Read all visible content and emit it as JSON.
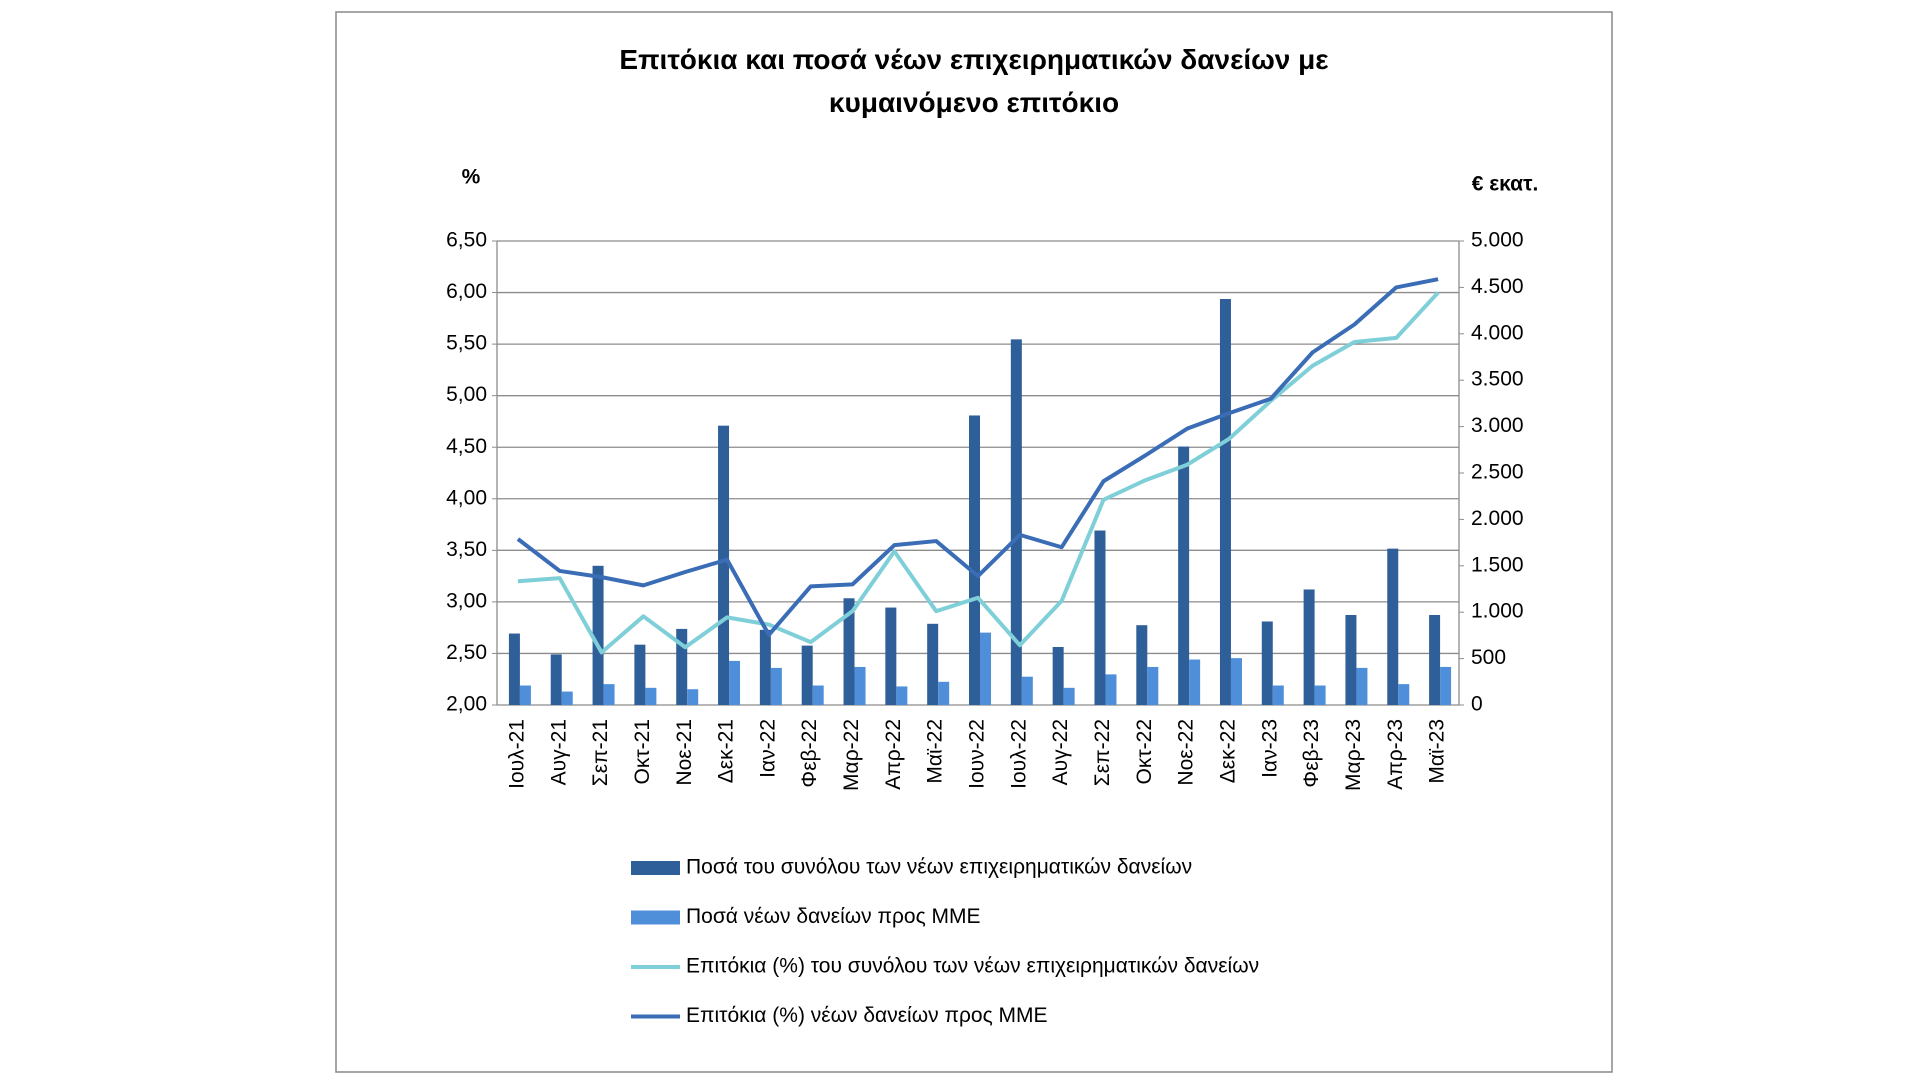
{
  "chart_data": {
    "type": "bar-line",
    "title": "Επιτόκια και ποσά νέων επιχειρηματικών  δανείων με\nκυμαινόμενο επιτόκιο",
    "y_label": "%",
    "y2_label": "€ εκατ.",
    "categories": [
      "Ιουλ-21",
      "Αυγ-21",
      "Σεπ-21",
      "Οκτ-21",
      "Νοε-21",
      "Δεκ-21",
      "Ιαν-22",
      "Φεβ-22",
      "Μαρ-22",
      "Απρ-22",
      "Μαϊ-22",
      "Ιουν-22",
      "Ιουλ-22",
      "Αυγ-22",
      "Σεπ-22",
      "Οκτ-22",
      "Νοε-22",
      "Δεκ-22",
      "Ιαν-23",
      "Φεβ-23",
      "Μαρ-23",
      "Απρ-23",
      "Μαϊ-23"
    ],
    "series": [
      {
        "name": "Ποσά του συνόλου των νέων επιχειρηματικών δανείων",
        "type": "bar",
        "axis": "y2",
        "color": "#2f5f98",
        "values": [
          770,
          545,
          1500,
          650,
          820,
          3010,
          810,
          640,
          1150,
          1050,
          875,
          3120,
          3940,
          625,
          1880,
          860,
          2785,
          4375,
          900,
          1245,
          970,
          1685,
          970
        ]
      },
      {
        "name": "Ποσά νέων δανείων προς ΜΜΕ",
        "type": "bar",
        "axis": "y2",
        "color": "#4f8fd9",
        "values": [
          210,
          145,
          225,
          185,
          170,
          475,
          400,
          210,
          410,
          200,
          250,
          780,
          305,
          185,
          330,
          410,
          490,
          505,
          210,
          210,
          400,
          225,
          410
        ]
      },
      {
        "name": "Επιτόκια (%) του συνόλου των νέων επιχειρηματικών δανείων",
        "type": "line",
        "color": "#7fcfd8",
        "values": [
          3.2,
          3.23,
          2.51,
          2.86,
          2.56,
          2.85,
          2.78,
          2.61,
          2.91,
          3.49,
          2.91,
          3.04,
          2.58,
          3.01,
          3.99,
          4.18,
          4.33,
          4.58,
          4.95,
          5.29,
          5.52,
          5.56,
          6.0
        ]
      },
      {
        "name": "Επιτόκια (%) νέων δανείων προς ΜΜΕ",
        "type": "line",
        "color": "#3a6db5",
        "values": [
          3.61,
          3.3,
          3.24,
          3.16,
          3.29,
          3.41,
          2.68,
          3.15,
          3.17,
          3.55,
          3.59,
          3.25,
          3.65,
          3.53,
          4.17,
          4.42,
          4.68,
          4.83,
          4.97,
          5.42,
          5.69,
          6.05,
          6.13
        ]
      }
    ],
    "ylim": [
      2,
      6.5
    ],
    "yticks": [
      {
        "value": 2,
        "label": "2,00"
      },
      {
        "value": 2.5,
        "label": "2,50"
      },
      {
        "value": 3,
        "label": "3,00"
      },
      {
        "value": 3.5,
        "label": "3,50"
      },
      {
        "value": 4,
        "label": "4,00"
      },
      {
        "value": 4.5,
        "label": "4,50"
      },
      {
        "value": 5,
        "label": "5,00"
      },
      {
        "value": 5.5,
        "label": "5,50"
      },
      {
        "value": 6,
        "label": "6,00"
      },
      {
        "value": 6.5,
        "label": "6,50"
      }
    ],
    "y2lim": [
      0,
      5000
    ],
    "y2ticks": [
      0,
      {
        "value": 500,
        "label": "500"
      },
      {
        "value": 1000,
        "label": "1.000"
      },
      {
        "value": 1500,
        "label": "1.500"
      },
      {
        "value": 2000,
        "label": "2.000"
      },
      {
        "value": 2500,
        "label": "2.500"
      },
      {
        "value": 3000,
        "label": "3.000"
      },
      {
        "value": 3500,
        "label": "3.500"
      },
      {
        "value": 4000,
        "label": "4.000"
      },
      {
        "value": 4500,
        "label": "4.500"
      },
      {
        "value": 5000,
        "label": "5.000"
      }
    ],
    "grid": true,
    "legend": "bottom"
  }
}
